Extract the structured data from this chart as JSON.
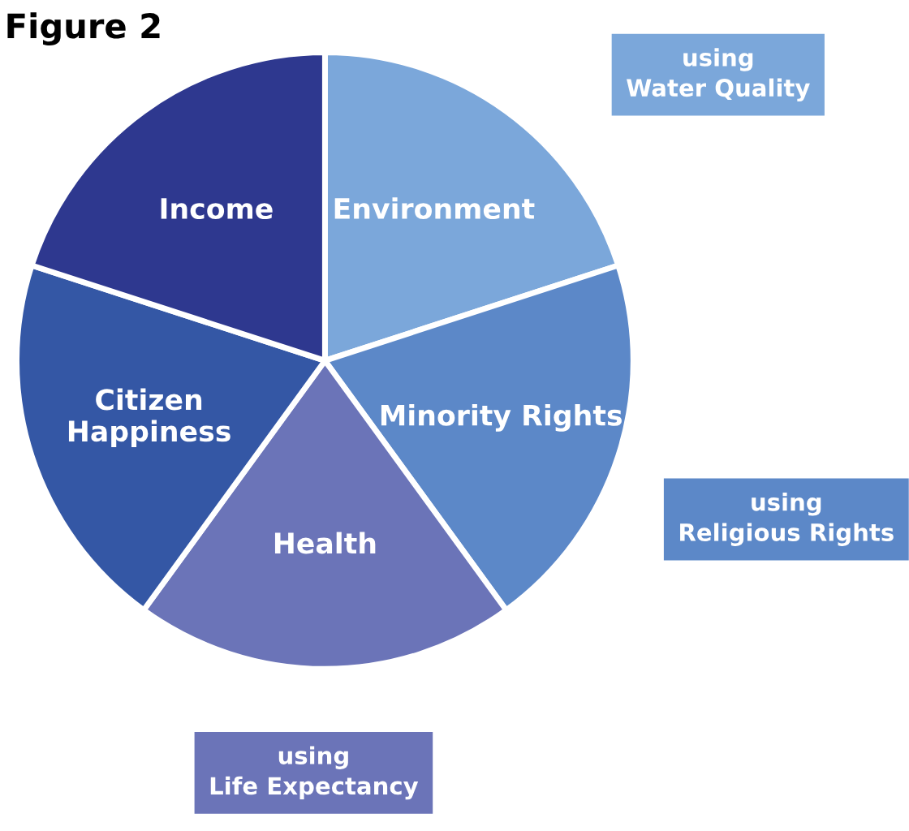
{
  "chart_data": {
    "type": "pie",
    "title": "Figure 2",
    "categories": [
      "Environment",
      "Minority Rights",
      "Health",
      "Citizen Happiness",
      "Income"
    ],
    "values": [
      20,
      20,
      20,
      20,
      20
    ],
    "colors": [
      "#7ba7da",
      "#5c88c8",
      "#6b74b8",
      "#3457a5",
      "#2e388f"
    ],
    "annotations": [
      "using\nWater Quality",
      "using\nReligious Rights",
      "using\nLife Expectancy"
    ]
  }
}
